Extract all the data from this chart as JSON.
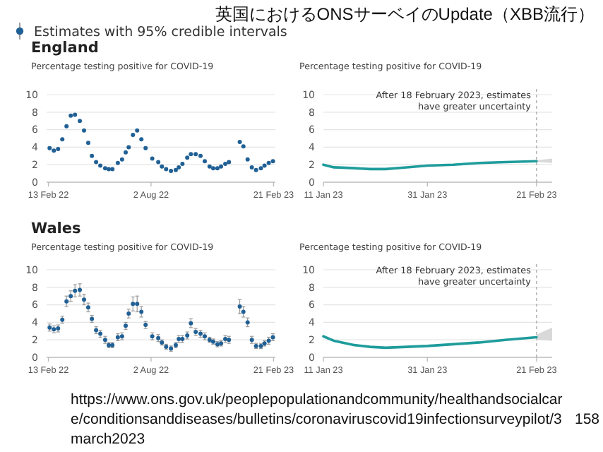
{
  "chart_data": [
    {
      "type": "other",
      "title": "英国におけるONSサーベイのUpdate（XBB流行）",
      "annotations": [
        "Estimates with 95% credible intervals",
        "https://www.ons.gov.uk/peoplepopulationandcommunity/healthandsocialcare/conditionsanddiseases/bulletins/coronaviruscovid19infectionsurveypilot/3march2023",
        "158"
      ]
    },
    {
      "type": "scatter",
      "title": "England",
      "ylabel": "Percentage testing positive for COVID-19",
      "marker": "circle",
      "grid": "y",
      "xlim": [
        "2022-02-10",
        "2023-02-24"
      ],
      "ylim": [
        0,
        10
      ],
      "yticks": [
        0,
        2,
        4,
        6,
        8,
        10
      ],
      "xticks": [
        {
          "value": "2022-02-13",
          "label": "13 Feb 22"
        },
        {
          "value": "2022-08-02",
          "label": "2 Aug 22"
        },
        {
          "value": "2023-02-21",
          "label": "21 Feb 23"
        }
      ],
      "x": [
        "2022-02-15",
        "2022-02-22",
        "2022-03-01",
        "2022-03-08",
        "2022-03-15",
        "2022-03-22",
        "2022-03-29",
        "2022-04-06",
        "2022-04-13",
        "2022-04-20",
        "2022-04-26",
        "2022-05-03",
        "2022-05-10",
        "2022-05-18",
        "2022-05-24",
        "2022-05-30",
        "2022-06-08",
        "2022-06-15",
        "2022-06-21",
        "2022-06-26",
        "2022-07-03",
        "2022-07-10",
        "2022-07-17",
        "2022-07-24",
        "2022-08-04",
        "2022-08-14",
        "2022-08-20",
        "2022-08-27",
        "2022-09-04",
        "2022-09-12",
        "2022-09-17",
        "2022-09-23",
        "2022-10-01",
        "2022-10-07",
        "2022-10-15",
        "2022-10-23",
        "2022-10-30",
        "2022-11-07",
        "2022-11-13",
        "2022-11-20",
        "2022-11-26",
        "2022-12-03",
        "2022-12-09",
        "2022-12-27",
        "2023-01-02",
        "2023-01-09",
        "2023-01-16",
        "2023-01-23",
        "2023-01-31",
        "2023-02-06",
        "2023-02-13",
        "2023-02-20"
      ],
      "series": [
        {
          "color": "#206095",
          "values": [
            3.9,
            3.6,
            3.8,
            4.9,
            6.4,
            7.6,
            7.7,
            7.0,
            5.9,
            4.5,
            3.0,
            2.3,
            1.9,
            1.6,
            1.5,
            1.5,
            2.2,
            2.6,
            3.4,
            4.0,
            5.4,
            5.9,
            4.9,
            3.9,
            2.7,
            2.3,
            1.8,
            1.5,
            1.3,
            1.4,
            1.7,
            2.1,
            2.8,
            3.2,
            3.2,
            3.0,
            2.4,
            1.8,
            1.6,
            1.6,
            1.8,
            2.1,
            2.3,
            4.6,
            4.1,
            2.6,
            1.7,
            1.4,
            1.6,
            1.9,
            2.2,
            2.4
          ]
        }
      ]
    },
    {
      "type": "line",
      "ylabel": "Percentage testing positive for COVID-19",
      "grid": "y",
      "xlim": [
        "2023-01-11",
        "2023-02-24"
      ],
      "ylim": [
        0,
        10
      ],
      "yticks": [
        0,
        2,
        4,
        6,
        8,
        10
      ],
      "xticks": [
        {
          "value": "2023-01-11",
          "label": "11 Jan 23"
        },
        {
          "value": "2023-01-31",
          "label": "31 Jan 23"
        },
        {
          "value": "2023-02-21",
          "label": "21 Feb 23"
        }
      ],
      "ref_lines": [
        {
          "axis": "x",
          "value": "2023-02-21",
          "label": "After 18 February 2023, estimates have greater uncertainty",
          "color": "#aaaaaa",
          "line_style": "dashed"
        }
      ],
      "x": [
        "2023-01-11",
        "2023-01-13",
        "2023-01-17",
        "2023-01-20",
        "2023-01-23",
        "2023-01-27",
        "2023-01-31",
        "2023-02-05",
        "2023-02-10",
        "2023-02-15",
        "2023-02-21",
        "2023-02-24"
      ],
      "series": [
        {
          "color": "#1f9c9c",
          "values": [
            2.0,
            1.7,
            1.6,
            1.5,
            1.5,
            1.7,
            1.9,
            2.0,
            2.2,
            2.3,
            2.4,
            null
          ],
          "lower": [
            null,
            null,
            null,
            null,
            null,
            null,
            null,
            null,
            null,
            null,
            2.3,
            2.2
          ],
          "upper": [
            null,
            null,
            null,
            null,
            null,
            null,
            null,
            null,
            null,
            null,
            2.5,
            2.7
          ]
        }
      ]
    },
    {
      "type": "scatter",
      "title": "Wales",
      "ylabel": "Percentage testing positive for COVID-19",
      "marker": "circle",
      "grid": "y",
      "xlim": [
        "2022-02-10",
        "2023-02-24"
      ],
      "ylim": [
        0,
        10
      ],
      "yticks": [
        0,
        2,
        4,
        6,
        8,
        10
      ],
      "xticks": [
        {
          "value": "2022-02-13",
          "label": "13 Feb 22"
        },
        {
          "value": "2022-08-02",
          "label": "2 Aug 22"
        },
        {
          "value": "2023-02-21",
          "label": "21 Feb 23"
        }
      ],
      "x": [
        "2022-02-15",
        "2022-02-22",
        "2022-03-01",
        "2022-03-08",
        "2022-03-15",
        "2022-03-22",
        "2022-03-29",
        "2022-04-06",
        "2022-04-13",
        "2022-04-20",
        "2022-04-26",
        "2022-05-03",
        "2022-05-10",
        "2022-05-18",
        "2022-05-24",
        "2022-05-30",
        "2022-06-08",
        "2022-06-15",
        "2022-06-21",
        "2022-06-26",
        "2022-07-03",
        "2022-07-10",
        "2022-07-17",
        "2022-07-24",
        "2022-08-04",
        "2022-08-14",
        "2022-08-20",
        "2022-08-27",
        "2022-09-04",
        "2022-09-12",
        "2022-09-17",
        "2022-09-23",
        "2022-10-01",
        "2022-10-07",
        "2022-10-15",
        "2022-10-23",
        "2022-10-30",
        "2022-11-07",
        "2022-11-13",
        "2022-11-20",
        "2022-11-26",
        "2022-12-03",
        "2022-12-09",
        "2022-12-27",
        "2023-01-02",
        "2023-01-09",
        "2023-01-16",
        "2023-01-23",
        "2023-01-31",
        "2023-02-06",
        "2023-02-13",
        "2023-02-20"
      ],
      "series": [
        {
          "color": "#206095",
          "values": [
            3.4,
            3.2,
            3.3,
            4.3,
            6.4,
            7.0,
            7.6,
            7.7,
            6.6,
            5.7,
            4.4,
            3.1,
            2.7,
            2.0,
            1.4,
            1.4,
            2.3,
            2.4,
            3.6,
            5.0,
            6.1,
            6.1,
            5.2,
            3.7,
            2.4,
            2.2,
            1.7,
            1.2,
            1.0,
            1.4,
            2.1,
            2.1,
            2.5,
            3.9,
            2.9,
            2.7,
            2.4,
            2.0,
            1.8,
            1.5,
            1.6,
            2.1,
            2.0,
            5.8,
            5.2,
            4.0,
            2.0,
            1.3,
            1.3,
            1.6,
            1.9,
            2.3
          ],
          "errors": [
            0.4,
            0.4,
            0.4,
            0.4,
            0.6,
            0.6,
            0.7,
            0.7,
            0.6,
            0.5,
            0.4,
            0.4,
            0.4,
            0.4,
            0.3,
            0.3,
            0.4,
            0.4,
            0.4,
            0.5,
            0.8,
            0.9,
            0.6,
            0.4,
            0.4,
            0.4,
            0.3,
            0.3,
            0.3,
            0.3,
            0.4,
            0.4,
            0.4,
            0.5,
            0.4,
            0.4,
            0.4,
            0.3,
            0.3,
            0.3,
            0.3,
            0.4,
            0.4,
            0.8,
            0.6,
            0.5,
            0.4,
            0.3,
            0.3,
            0.3,
            0.4,
            0.4
          ]
        }
      ]
    },
    {
      "type": "line",
      "ylabel": "Percentage testing positive for COVID-19",
      "grid": "y",
      "xlim": [
        "2023-01-11",
        "2023-02-24"
      ],
      "ylim": [
        0,
        10
      ],
      "yticks": [
        0,
        2,
        4,
        6,
        8,
        10
      ],
      "xticks": [
        {
          "value": "2023-01-11",
          "label": "11 Jan 23"
        },
        {
          "value": "2023-01-31",
          "label": "31 Jan 23"
        },
        {
          "value": "2023-02-21",
          "label": "21 Feb 23"
        }
      ],
      "ref_lines": [
        {
          "axis": "x",
          "value": "2023-02-21",
          "label": "After 18 February 2023, estimates have greater uncertainty",
          "color": "#aaaaaa",
          "line_style": "dashed"
        }
      ],
      "x": [
        "2023-01-11",
        "2023-01-13",
        "2023-01-17",
        "2023-01-20",
        "2023-01-23",
        "2023-01-27",
        "2023-01-31",
        "2023-02-05",
        "2023-02-10",
        "2023-02-15",
        "2023-02-21",
        "2023-02-24"
      ],
      "series": [
        {
          "color": "#1f9c9c",
          "values": [
            2.4,
            1.9,
            1.4,
            1.2,
            1.1,
            1.2,
            1.3,
            1.5,
            1.7,
            2.0,
            2.3,
            null
          ],
          "lower": [
            null,
            null,
            null,
            null,
            null,
            null,
            null,
            null,
            null,
            null,
            2.0,
            1.9
          ],
          "upper": [
            null,
            null,
            null,
            null,
            null,
            null,
            null,
            null,
            null,
            null,
            2.6,
            3.4
          ]
        }
      ]
    }
  ]
}
